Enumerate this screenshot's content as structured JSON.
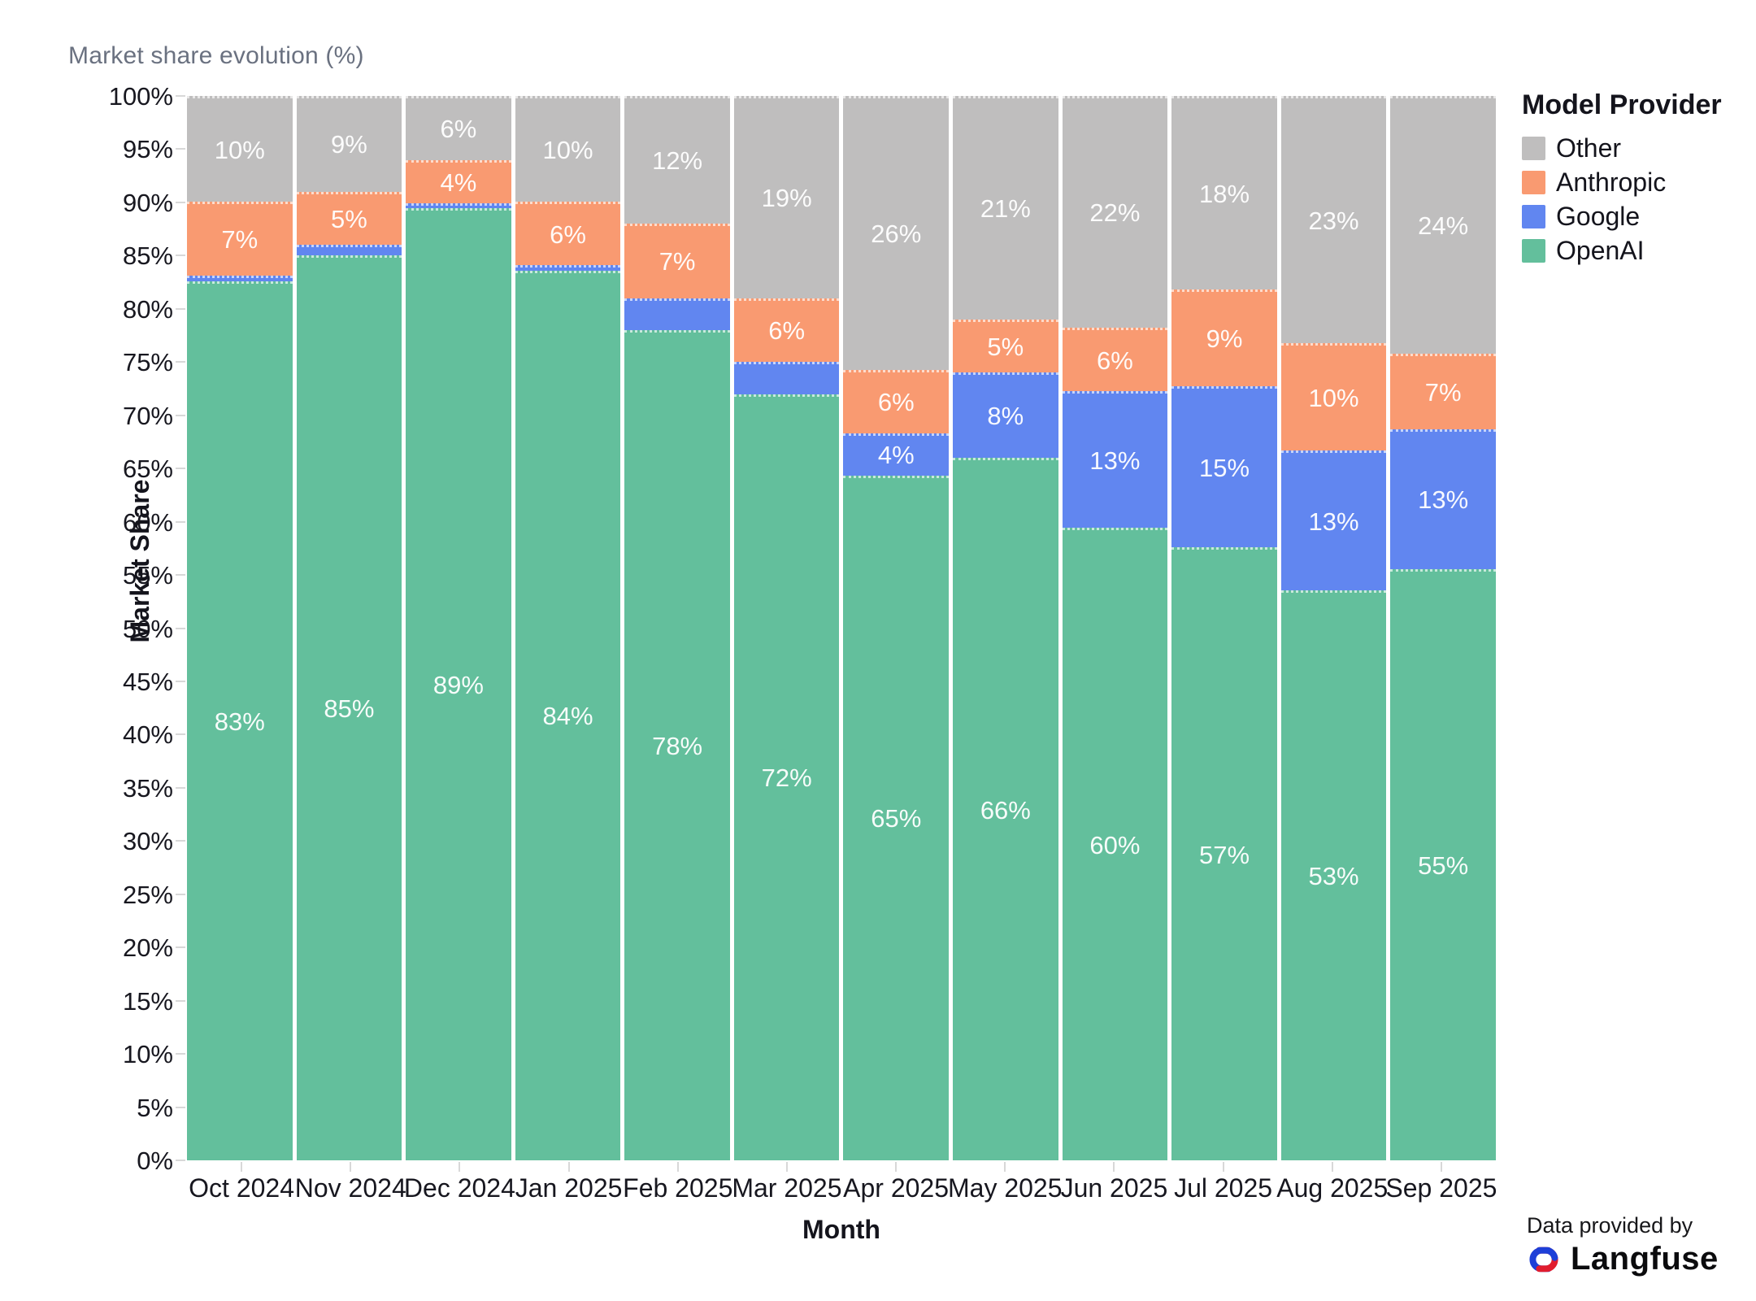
{
  "title": "Market share evolution (%)",
  "y_axis": {
    "label": "Market Share",
    "ticks": [
      "100%",
      "95%",
      "90%",
      "85%",
      "80%",
      "75%",
      "70%",
      "65%",
      "60%",
      "55%",
      "50%",
      "45%",
      "40%",
      "35%",
      "30%",
      "25%",
      "20%",
      "15%",
      "10%",
      "5%",
      "0%"
    ]
  },
  "x_axis": {
    "label": "Month"
  },
  "legend": {
    "title": "Model Provider",
    "position": "right",
    "items": [
      {
        "label": "Other",
        "color": "#bfbebe"
      },
      {
        "label": "Anthropic",
        "color": "#f99a71"
      },
      {
        "label": "Google",
        "color": "#6186f0"
      },
      {
        "label": "OpenAI",
        "color": "#63bf9c"
      }
    ]
  },
  "attribution": {
    "prefix": "Data provided by",
    "brand": "Langfuse",
    "logo_colors": {
      "red": "#e11d2e",
      "blue": "#1d3fd8"
    }
  },
  "chart_data": {
    "type": "bar",
    "stacked": true,
    "title": "Market share evolution (%)",
    "xlabel": "Month",
    "ylabel": "Market Share",
    "ylim": [
      0,
      100
    ],
    "legend_position": "right",
    "grid": false,
    "categories": [
      "Oct 2024",
      "Nov 2024",
      "Dec 2024",
      "Jan 2025",
      "Feb 2025",
      "Mar 2025",
      "Apr 2025",
      "May 2025",
      "Jun 2025",
      "Jul 2025",
      "Aug 2025",
      "Sep 2025"
    ],
    "series": [
      {
        "name": "Other",
        "color": "#bfbebe",
        "values": [
          10,
          9,
          6,
          10,
          12,
          19,
          26,
          21,
          22,
          18,
          23,
          24
        ],
        "labels": [
          "10%",
          "9%",
          "6%",
          "10%",
          "12%",
          "19%",
          "26%",
          "21%",
          "22%",
          "18%",
          "23%",
          "24%"
        ]
      },
      {
        "name": "Anthropic",
        "color": "#f99a71",
        "values": [
          7,
          5,
          4,
          6,
          7,
          6,
          6,
          5,
          6,
          9,
          10,
          7
        ],
        "labels": [
          "7%",
          "5%",
          "4%",
          "6%",
          "7%",
          "6%",
          "6%",
          "5%",
          "6%",
          "9%",
          "10%",
          "7%"
        ]
      },
      {
        "name": "Google",
        "color": "#6186f0",
        "values": [
          0.5,
          1,
          0.5,
          0.5,
          3,
          3,
          4,
          8,
          13,
          15,
          13,
          13
        ],
        "labels": [
          "",
          "",
          "",
          "",
          "",
          "",
          "4%",
          "8%",
          "13%",
          "15%",
          "13%",
          "13%"
        ]
      },
      {
        "name": "OpenAI",
        "color": "#63bf9c",
        "values": [
          83,
          85,
          89,
          84,
          78,
          72,
          65,
          66,
          60,
          57,
          53,
          55
        ],
        "labels": [
          "83%",
          "85%",
          "89%",
          "84%",
          "78%",
          "72%",
          "65%",
          "66%",
          "60%",
          "57%",
          "53%",
          "55%"
        ]
      }
    ]
  }
}
